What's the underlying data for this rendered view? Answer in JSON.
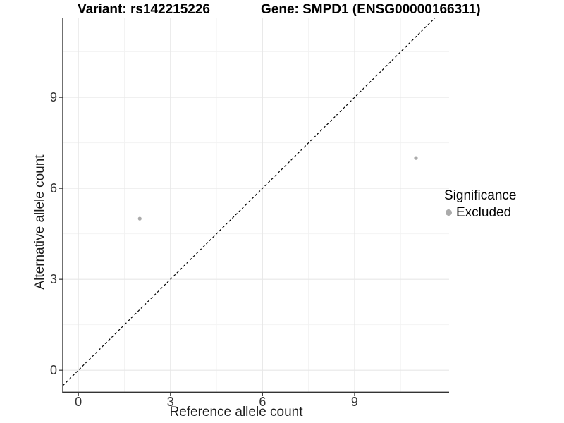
{
  "chart_data": {
    "type": "scatter",
    "title_left": "Variant: rs142215226",
    "title_right": "Gene: SMPD1 (ENSG00000166311)",
    "xlabel": "Reference allele count",
    "ylabel": "Alternative allele count",
    "xlim": [
      -0.51,
      12.08
    ],
    "ylim": [
      -0.74,
      11.63
    ],
    "x_major_ticks": [
      0,
      3,
      6,
      9
    ],
    "y_major_ticks": [
      0,
      3,
      6,
      9
    ],
    "x_minor_ticks": [
      1.5,
      4.5,
      7.5,
      10.5
    ],
    "y_minor_ticks": [
      1.5,
      4.5,
      7.5,
      10.5
    ],
    "grid": {
      "major": true,
      "minor": true
    },
    "identity_line": {
      "slope": 1,
      "intercept": 0,
      "style": "dashed"
    },
    "series": [
      {
        "name": "Excluded",
        "marker": "circle",
        "marker_radius": 2.6,
        "points": [
          [
            2,
            5
          ],
          [
            11,
            7
          ]
        ]
      }
    ],
    "legend": {
      "title": "Significance",
      "position": "right",
      "items": [
        {
          "label": "Excluded",
          "color": "#ababab"
        }
      ]
    }
  },
  "colors": {
    "background": "#ffffff",
    "grid_major": "#e7e7e7",
    "grid_minor": "#f2f2f2",
    "axis_line": "#333333",
    "tick_mark": "#333333",
    "tick_label": "#333333",
    "identity_line": "#000000",
    "point": "#ababab"
  }
}
